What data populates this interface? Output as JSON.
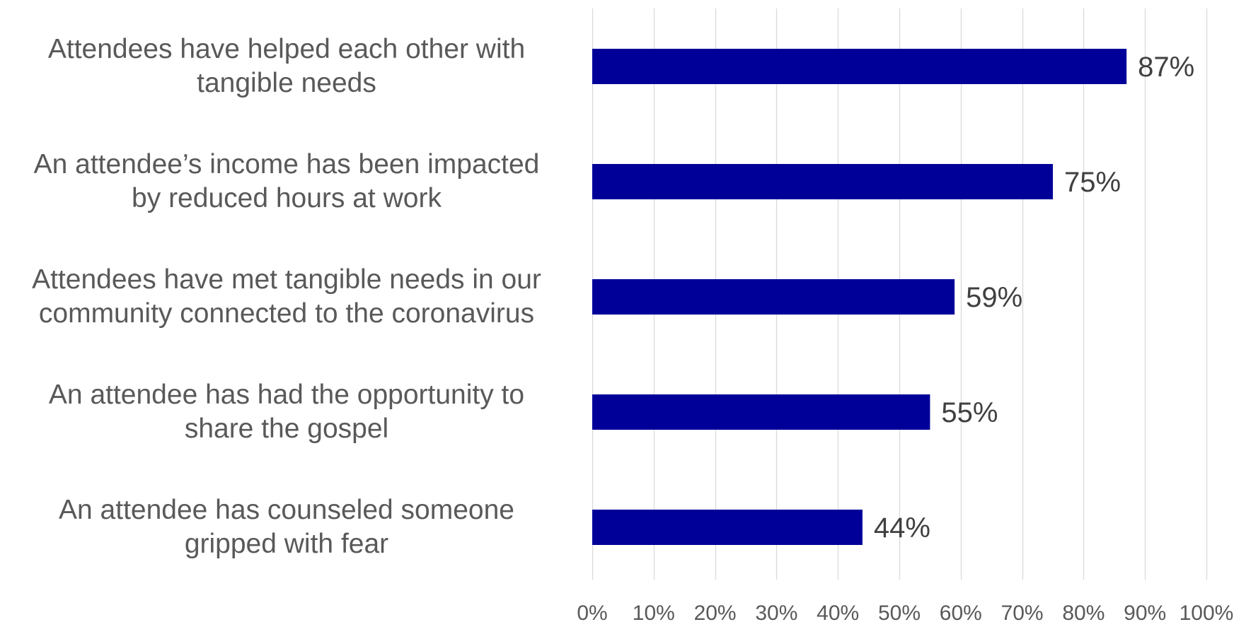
{
  "chart_data": {
    "type": "bar",
    "orientation": "horizontal",
    "categories": [
      "Attendees have helped each other with\ntangible needs",
      "An attendee’s income has been impacted\nby reduced hours at work",
      "Attendees have met tangible needs in our\ncommunity connected to the coronavirus",
      "An attendee has had the opportunity to\nshare the gospel",
      "An attendee has counseled someone\ngripped with fear"
    ],
    "values": [
      87,
      75,
      59,
      55,
      44
    ],
    "data_labels": [
      "87%",
      "75%",
      "59%",
      "55%",
      "44%"
    ],
    "xlim": [
      0,
      100
    ],
    "x_ticks": [
      0,
      10,
      20,
      30,
      40,
      50,
      60,
      70,
      80,
      90,
      100
    ],
    "x_tick_labels": [
      "0%",
      "10%",
      "20%",
      "30%",
      "40%",
      "50%",
      "60%",
      "70%",
      "80%",
      "90%",
      "100%"
    ],
    "title": "",
    "xlabel": "",
    "ylabel": "",
    "grid": "vertical",
    "legend": "none",
    "colors": {
      "bar": "#000099",
      "gridline": "#d9d9d9",
      "category_text": "#595959",
      "value_text": "#404040",
      "tick_text": "#595959"
    }
  }
}
